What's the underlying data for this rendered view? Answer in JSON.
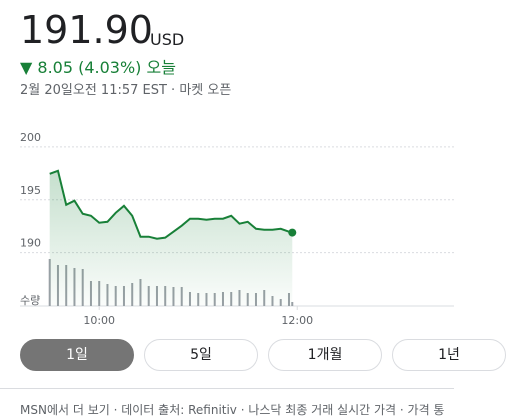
{
  "header": {
    "price": "191.90",
    "currency": "USD",
    "change": "▼ 8.05 (4.03%)",
    "period": "오늘",
    "timestamp": "2월 20일오전 11:57 EST · 마켓 오픈"
  },
  "chart_data": {
    "type": "line",
    "x": [
      570,
      575,
      580,
      585,
      590,
      595,
      600,
      605,
      610,
      615,
      620,
      625,
      630,
      635,
      640,
      645,
      650,
      655,
      660,
      665,
      670,
      675,
      680,
      685,
      690,
      695,
      700,
      705,
      710,
      715,
      717
    ],
    "xlim": [
      552,
      815
    ],
    "xticks": [
      {
        "value": 600,
        "label": "10:00"
      },
      {
        "value": 720,
        "label": "12:00"
      }
    ],
    "ylim": [
      186,
      201.5
    ],
    "yticks": [
      190,
      195,
      200
    ],
    "y2lim": [
      0,
      50
    ],
    "y2_label": "수량",
    "grid": true,
    "series": [
      {
        "color": "#188038",
        "values": [
          197.45,
          197.74,
          194.53,
          194.91,
          193.68,
          193.49,
          192.83,
          192.92,
          193.77,
          194.43,
          193.49,
          191.51,
          191.51,
          191.32,
          191.42,
          191.98,
          192.55,
          193.21,
          193.21,
          193.11,
          193.21,
          193.21,
          193.49,
          192.74,
          192.92,
          192.26,
          192.17,
          192.17,
          192.26,
          191.98,
          191.9
        ]
      },
      {
        "type": "bar",
        "axis": "y2",
        "color": "#9aa0a6",
        "values": [
          47,
          41,
          41,
          38,
          37,
          25,
          25,
          22,
          20,
          20,
          23,
          27,
          20,
          20,
          20,
          19,
          19,
          14,
          13,
          13,
          13,
          14,
          14,
          16,
          13,
          13,
          16,
          10,
          7,
          13,
          4
        ]
      }
    ]
  },
  "tabs": [
    {
      "label": "1일",
      "selected": true
    },
    {
      "label": "5일",
      "selected": false
    },
    {
      "label": "1개월",
      "selected": false
    },
    {
      "label": "1년",
      "selected": false
    }
  ],
  "footer": "MSN에서 더 보기 · 데이터 출처: Refinitiv · 나스닥 최종 거래 실시간 가격 · 가격 통"
}
